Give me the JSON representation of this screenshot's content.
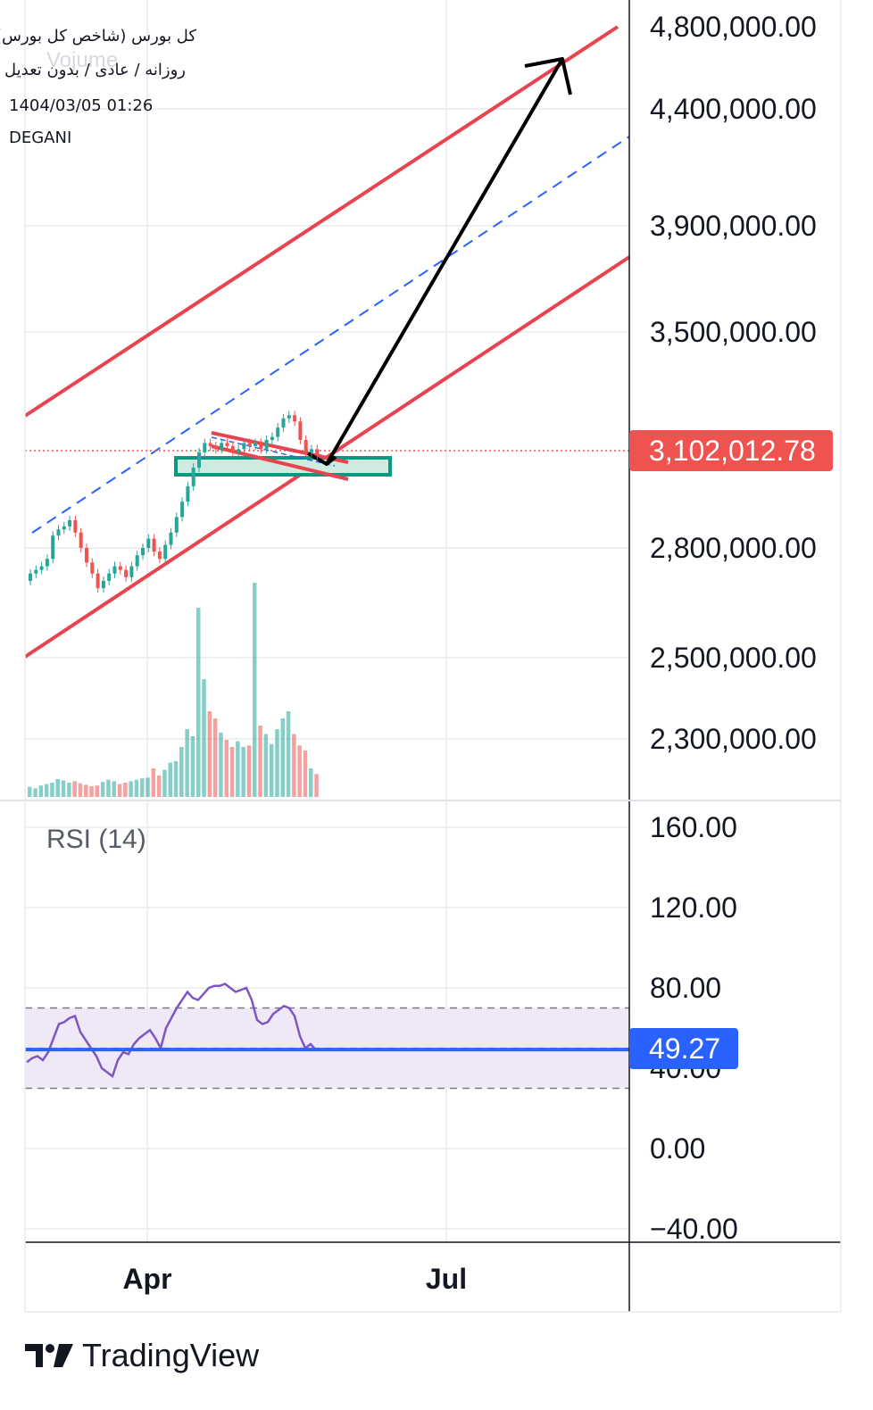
{
  "header": {
    "symbol": "کل بورس (شاخص کل بورس)",
    "interval": "روزانه / عادی / بدون تعدیل",
    "datetime": "1404/03/05 01:26",
    "author": "DEGANI",
    "watermark": "Vojume"
  },
  "rsi_title": "RSI (14)",
  "brand": {
    "name": "TradingView",
    "icon": "tradingview-logo-icon"
  },
  "colors": {
    "up": "#26a69a",
    "down": "#ef5350",
    "channel": "#e8434f",
    "midline": "#2962ff",
    "rsi_line": "#7e57c2",
    "rsi_ma": "#2962ff",
    "price_label_bg": "#ef5350",
    "rsi_label_bg": "#2962ff",
    "box": "#089981"
  },
  "chart_data": [
    {
      "type": "candlestick",
      "x_tick_labels": [
        "Apr",
        "Jul"
      ],
      "y_tick_labels": [
        "4,800,000.00",
        "4,400,000.00",
        "3,900,000.00",
        "3,500,000.00",
        "2,800,000.00",
        "2,500,000.00",
        "2,300,000.00"
      ],
      "last_price_label": "3,102,012.78",
      "last_price": 3102012.78,
      "grid": true,
      "candles": [
        {
          "o": 2710000,
          "c": 2730000
        },
        {
          "o": 2730000,
          "c": 2740000
        },
        {
          "o": 2740000,
          "c": 2750000
        },
        {
          "o": 2750000,
          "c": 2770000
        },
        {
          "o": 2770000,
          "c": 2840000
        },
        {
          "o": 2840000,
          "c": 2860000
        },
        {
          "o": 2860000,
          "c": 2870000
        },
        {
          "o": 2870000,
          "c": 2890000
        },
        {
          "o": 2890000,
          "c": 2850000
        },
        {
          "o": 2850000,
          "c": 2800000
        },
        {
          "o": 2800000,
          "c": 2760000
        },
        {
          "o": 2760000,
          "c": 2730000
        },
        {
          "o": 2730000,
          "c": 2690000
        },
        {
          "o": 2690000,
          "c": 2710000
        },
        {
          "o": 2710000,
          "c": 2730000
        },
        {
          "o": 2730000,
          "c": 2750000
        },
        {
          "o": 2750000,
          "c": 2740000
        },
        {
          "o": 2740000,
          "c": 2720000
        },
        {
          "o": 2720000,
          "c": 2750000
        },
        {
          "o": 2750000,
          "c": 2780000
        },
        {
          "o": 2780000,
          "c": 2800000
        },
        {
          "o": 2800000,
          "c": 2830000
        },
        {
          "o": 2830000,
          "c": 2790000
        },
        {
          "o": 2790000,
          "c": 2770000
        },
        {
          "o": 2770000,
          "c": 2810000
        },
        {
          "o": 2810000,
          "c": 2850000
        },
        {
          "o": 2850000,
          "c": 2900000
        },
        {
          "o": 2900000,
          "c": 2950000
        },
        {
          "o": 2950000,
          "c": 3000000
        },
        {
          "o": 3000000,
          "c": 3060000
        },
        {
          "o": 3060000,
          "c": 3110000
        },
        {
          "o": 3110000,
          "c": 3140000
        },
        {
          "o": 3140000,
          "c": 3130000
        },
        {
          "o": 3130000,
          "c": 3120000
        },
        {
          "o": 3120000,
          "c": 3140000
        },
        {
          "o": 3140000,
          "c": 3130000
        },
        {
          "o": 3130000,
          "c": 3110000
        },
        {
          "o": 3110000,
          "c": 3120000
        },
        {
          "o": 3120000,
          "c": 3140000
        },
        {
          "o": 3140000,
          "c": 3130000
        },
        {
          "o": 3130000,
          "c": 3140000
        },
        {
          "o": 3140000,
          "c": 3120000
        },
        {
          "o": 3120000,
          "c": 3150000
        },
        {
          "o": 3150000,
          "c": 3160000
        },
        {
          "o": 3160000,
          "c": 3190000
        },
        {
          "o": 3190000,
          "c": 3220000
        },
        {
          "o": 3220000,
          "c": 3230000
        },
        {
          "o": 3230000,
          "c": 3210000
        },
        {
          "o": 3210000,
          "c": 3150000
        },
        {
          "o": 3150000,
          "c": 3110000
        },
        {
          "o": 3110000,
          "c": 3120000
        },
        {
          "o": 3120000,
          "c": 3100000
        }
      ],
      "volumes": [
        14,
        12,
        16,
        18,
        20,
        25,
        23,
        20,
        22,
        19,
        17,
        15,
        16,
        21,
        24,
        22,
        18,
        20,
        22,
        24,
        26,
        27,
        40,
        30,
        38,
        48,
        50,
        70,
        95,
        85,
        265,
        165,
        120,
        110,
        90,
        80,
        70,
        78,
        70,
        72,
        300,
        100,
        88,
        74,
        95,
        110,
        120,
        88,
        72,
        65,
        40,
        32
      ]
    },
    {
      "type": "line",
      "name": "RSI (14)",
      "y_tick_labels": [
        "160.00",
        "120.00",
        "80.00",
        "40.00",
        "0.00",
        "-40.00"
      ],
      "last_value_label": "49.27",
      "last_value": 49.27,
      "band": [
        30,
        70
      ],
      "values": [
        43,
        45,
        46,
        44,
        48,
        55,
        62,
        63,
        65,
        66,
        58,
        54,
        50,
        46,
        40,
        38,
        36,
        44,
        48,
        47,
        52,
        55,
        57,
        59,
        55,
        50,
        60,
        65,
        70,
        74,
        78,
        75,
        74,
        77,
        80,
        81,
        81,
        82,
        80,
        78,
        79,
        80,
        74,
        64,
        62,
        63,
        67,
        69,
        71,
        70,
        66,
        56,
        50,
        52,
        49
      ]
    }
  ]
}
